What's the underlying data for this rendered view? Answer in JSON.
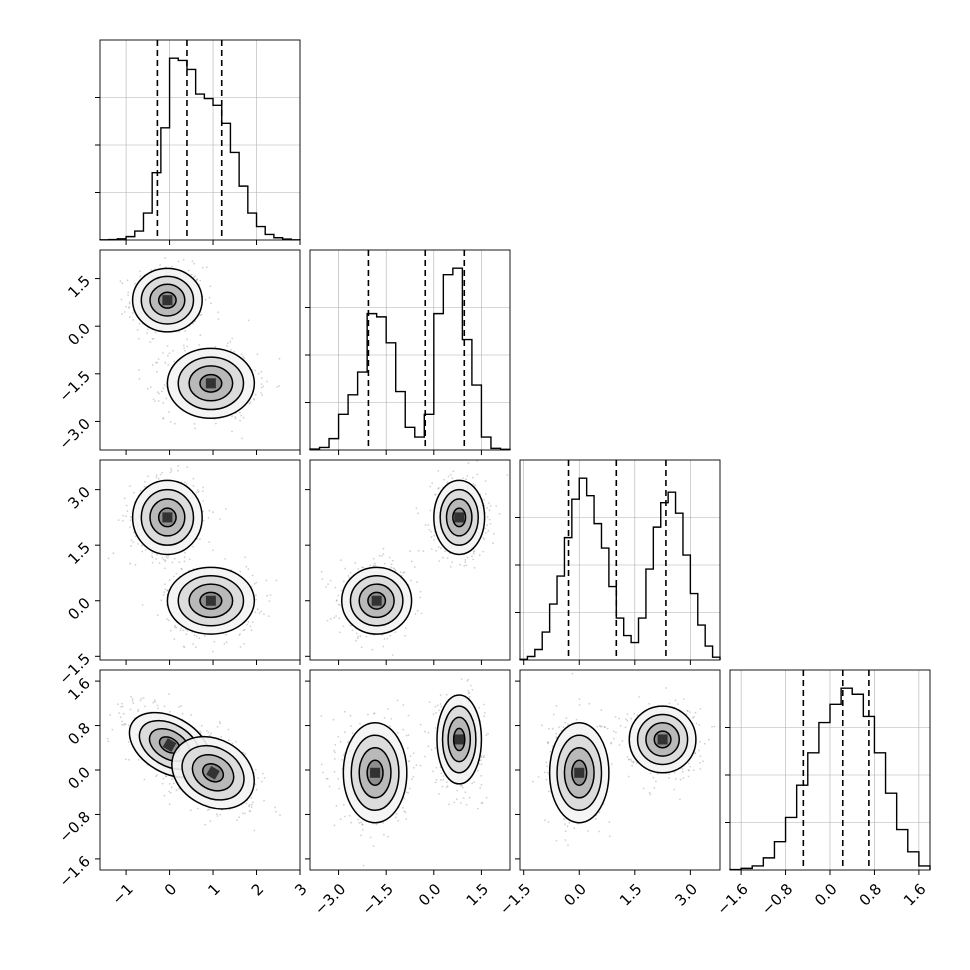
{
  "chart_data": {
    "type": "corner",
    "parameters": 4,
    "grid": true,
    "quantiles": [
      0.16,
      0.5,
      0.84
    ],
    "ranges": [
      [
        -1.6,
        3.0
      ],
      [
        -3.9,
        2.4
      ],
      [
        -1.6,
        3.8
      ],
      [
        -1.8,
        1.8
      ]
    ],
    "ticks": [
      {
        "values": [
          -1,
          0,
          1,
          2,
          3
        ],
        "labels": [
          "−1",
          "0",
          "1",
          "2",
          "3"
        ]
      },
      {
        "values": [
          -3.0,
          -1.5,
          0.0,
          1.5
        ],
        "labels": [
          "−3.0",
          "−1.5",
          "0.0",
          "1.5"
        ]
      },
      {
        "values": [
          -1.5,
          0.0,
          1.5,
          3.0
        ],
        "labels": [
          "−1.5",
          "0.0",
          "1.5",
          "3.0"
        ]
      },
      {
        "values": [
          -1.6,
          -0.8,
          0.0,
          0.8,
          1.6
        ],
        "labels": [
          "−1.6",
          "−0.8",
          "0.0",
          "0.8",
          "1.6"
        ]
      }
    ],
    "histograms": [
      {
        "param": 0,
        "bin_edges": [
          -1.6,
          -1.4,
          -1.2,
          -1.0,
          -0.8,
          -0.6,
          -0.4,
          -0.2,
          0.0,
          0.2,
          0.4,
          0.6,
          0.8,
          1.0,
          1.2,
          1.4,
          1.6,
          1.8,
          2.0,
          2.2,
          2.4,
          2.6,
          2.8,
          3.0
        ],
        "counts": [
          1,
          2,
          5,
          15,
          40,
          120,
          300,
          500,
          810,
          800,
          760,
          650,
          630,
          600,
          520,
          390,
          240,
          120,
          60,
          25,
          10,
          4,
          1
        ],
        "quantile_values": [
          -0.28,
          0.4,
          1.2
        ]
      },
      {
        "param": 1,
        "bin_edges": [
          -3.9,
          -3.6,
          -3.3,
          -3.0,
          -2.7,
          -2.4,
          -2.1,
          -1.8,
          -1.5,
          -1.2,
          -0.9,
          -0.6,
          -0.3,
          0.0,
          0.3,
          0.6,
          0.9,
          1.2,
          1.5,
          1.8,
          2.1,
          2.4
        ],
        "counts": [
          3,
          8,
          35,
          110,
          170,
          240,
          420,
          410,
          330,
          180,
          70,
          40,
          110,
          420,
          540,
          560,
          340,
          200,
          40,
          5,
          2
        ],
        "quantile_values": [
          -2.06,
          -0.27,
          0.96
        ]
      },
      {
        "param": 2,
        "bin_edges": [
          -1.6,
          -1.4,
          -1.2,
          -1.0,
          -0.8,
          -0.6,
          -0.4,
          -0.2,
          0.0,
          0.2,
          0.4,
          0.6,
          0.8,
          1.0,
          1.2,
          1.4,
          1.6,
          1.8,
          2.0,
          2.2,
          2.4,
          2.6,
          2.8,
          3.0,
          3.2,
          3.4,
          3.6,
          3.8
        ],
        "counts": [
          2,
          10,
          30,
          80,
          160,
          240,
          350,
          460,
          520,
          470,
          390,
          320,
          210,
          120,
          70,
          50,
          120,
          260,
          380,
          450,
          480,
          420,
          300,
          190,
          100,
          40,
          8
        ],
        "quantile_values": [
          -0.29,
          1.0,
          2.34
        ]
      },
      {
        "param": 3,
        "bin_edges": [
          -1.8,
          -1.6,
          -1.4,
          -1.2,
          -1.0,
          -0.8,
          -0.6,
          -0.4,
          -0.2,
          0.0,
          0.2,
          0.4,
          0.6,
          0.8,
          1.0,
          1.2,
          1.4,
          1.6,
          1.8
        ],
        "counts": [
          2,
          8,
          20,
          60,
          140,
          260,
          420,
          580,
          730,
          820,
          900,
          870,
          760,
          580,
          380,
          200,
          90,
          20
        ],
        "quantile_values": [
          -0.48,
          0.23,
          0.7
        ]
      }
    ],
    "pairs": [
      {
        "x_param": 0,
        "y_param": 1,
        "modes": [
          {
            "center": [
              -0.05,
              0.82
            ],
            "sigma": [
              0.4,
              0.5
            ],
            "rotation": 0
          },
          {
            "center": [
              0.95,
              -1.8
            ],
            "sigma": [
              0.5,
              0.55
            ],
            "rotation": 0
          }
        ]
      },
      {
        "x_param": 0,
        "y_param": 2,
        "modes": [
          {
            "center": [
              -0.05,
              2.25
            ],
            "sigma": [
              0.4,
              0.5
            ],
            "rotation": 0
          },
          {
            "center": [
              0.95,
              0.0
            ],
            "sigma": [
              0.5,
              0.45
            ],
            "rotation": 0
          }
        ]
      },
      {
        "x_param": 1,
        "y_param": 2,
        "modes": [
          {
            "center": [
              0.8,
              2.25
            ],
            "sigma": [
              0.4,
              0.5
            ],
            "rotation": 0
          },
          {
            "center": [
              -1.8,
              0.0
            ],
            "sigma": [
              0.55,
              0.45
            ],
            "rotation": 0
          }
        ]
      },
      {
        "x_param": 0,
        "y_param": 3,
        "modes": [
          {
            "center": [
              0.0,
              0.45
            ],
            "sigma": [
              0.5,
              0.25
            ],
            "rotation": -30
          },
          {
            "center": [
              1.0,
              -0.05
            ],
            "sigma": [
              0.5,
              0.3
            ],
            "rotation": -30
          }
        ]
      },
      {
        "x_param": 1,
        "y_param": 3,
        "modes": [
          {
            "center": [
              0.8,
              0.55
            ],
            "sigma": [
              0.35,
              0.4
            ],
            "rotation": 0
          },
          {
            "center": [
              -1.85,
              -0.05
            ],
            "sigma": [
              0.5,
              0.45
            ],
            "rotation": 0
          }
        ]
      },
      {
        "x_param": 2,
        "y_param": 3,
        "modes": [
          {
            "center": [
              2.25,
              0.55
            ],
            "sigma": [
              0.45,
              0.3
            ],
            "rotation": 0
          },
          {
            "center": [
              0.0,
              -0.05
            ],
            "sigma": [
              0.4,
              0.45
            ],
            "rotation": 0
          }
        ]
      }
    ],
    "contour_levels_sigma": [
      0.5,
      1.0,
      1.5,
      2.0
    ]
  }
}
